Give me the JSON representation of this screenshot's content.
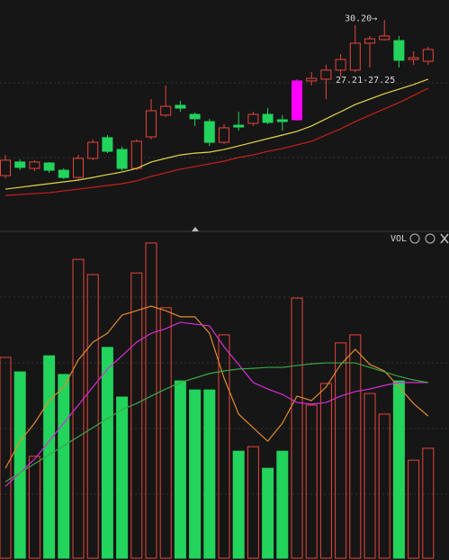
{
  "chart_data": [
    {
      "type": "candlestick",
      "open": [
        22.46,
        23.14,
        22.82,
        23.09,
        22.73,
        22.37,
        23.32,
        24.35,
        23.76,
        22.82,
        24.39,
        25.47,
        25.96,
        25.51,
        25.15,
        24.12,
        24.97,
        25.06,
        25.51,
        25.24,
        25.24,
        27.17,
        27.26,
        27.71,
        27.71,
        29.05,
        29.23,
        29.18,
        28.24,
        28.15
      ],
      "high": [
        23.49,
        23.27,
        23.23,
        23.14,
        22.82,
        23.49,
        24.26,
        24.48,
        23.9,
        24.26,
        26.27,
        26.94,
        26.18,
        25.6,
        25.29,
        25.02,
        25.64,
        25.64,
        25.82,
        25.47,
        27.26,
        27.62,
        27.97,
        28.51,
        29.95,
        29.41,
        30.2,
        29.41,
        28.65,
        28.87
      ],
      "low": [
        22.33,
        22.73,
        22.69,
        22.6,
        22.28,
        22.28,
        23.23,
        23.58,
        22.69,
        22.73,
        24.26,
        25.38,
        25.64,
        24.93,
        23.94,
        24.03,
        24.7,
        24.93,
        25.02,
        24.7,
        25.2,
        26.94,
        26.27,
        27.39,
        27.62,
        27.84,
        29.18,
        27.84,
        27.97,
        27.97
      ],
      "close": [
        23.23,
        22.87,
        23.14,
        22.73,
        22.37,
        23.32,
        24.12,
        23.67,
        22.82,
        24.17,
        25.69,
        25.91,
        25.82,
        25.29,
        24.12,
        24.84,
        24.88,
        25.51,
        25.11,
        25.15,
        27.17,
        27.3,
        27.71,
        28.24,
        29.05,
        29.27,
        29.41,
        28.2,
        28.33,
        28.74
      ],
      "ylim": [
        20,
        31.2
      ],
      "up_color": "#e8453c",
      "down_color": "#22d35c",
      "highlight_index": 20,
      "highlight_color": "#ff00ff",
      "series": [
        {
          "color": "#e2d64a",
          "values": [
            21.79,
            21.88,
            21.97,
            22.06,
            22.15,
            22.24,
            22.37,
            22.51,
            22.64,
            22.82,
            23.14,
            23.32,
            23.49,
            23.58,
            23.63,
            23.76,
            23.94,
            24.12,
            24.3,
            24.48,
            24.66,
            24.93,
            25.29,
            25.64,
            26.0,
            26.27,
            26.54,
            26.76,
            26.99,
            27.26
          ]
        },
        {
          "color": "#c8201c",
          "values": [
            21.48,
            21.52,
            21.57,
            21.61,
            21.7,
            21.79,
            21.88,
            21.97,
            22.06,
            22.2,
            22.42,
            22.6,
            22.78,
            22.91,
            23.05,
            23.18,
            23.36,
            23.49,
            23.67,
            23.81,
            23.99,
            24.17,
            24.48,
            24.79,
            25.15,
            25.47,
            25.78,
            26.09,
            26.45,
            26.81
          ]
        }
      ],
      "annotations": [
        "30.20→",
        "27.21-27.25"
      ]
    },
    {
      "type": "volume",
      "title": "VOL",
      "values": [
        62.3,
        57.8,
        31.6,
        62.8,
        57.0,
        92.7,
        88.0,
        65.4,
        50.0,
        88.5,
        97.8,
        77.7,
        55.0,
        52.2,
        52.2,
        69.3,
        33.2,
        34.6,
        27.9,
        33.2,
        80.7,
        47.5,
        54.2,
        66.8,
        69.3,
        51.1,
        44.7,
        55.0,
        30.4,
        34.1
      ],
      "ylim": [
        0,
        100
      ],
      "series": [
        {
          "color": "#e08a2a",
          "values": [
            27.9,
            36.3,
            41.9,
            48.9,
            53.1,
            61.5,
            67.0,
            69.8,
            75.4,
            76.8,
            78.2,
            76.8,
            74.9,
            74.9,
            69.8,
            55.9,
            44.7,
            40.5,
            36.3,
            41.9,
            50.3,
            48.9,
            53.1,
            60.1,
            64.8,
            60.1,
            58.1,
            53.1,
            48.0,
            44.1
          ]
        },
        {
          "color": "#d62ed6",
          "values": [
            22.3,
            26.5,
            30.7,
            36.3,
            41.9,
            47.5,
            53.1,
            58.7,
            62.8,
            67.0,
            69.8,
            71.2,
            73.2,
            72.6,
            72.1,
            65.6,
            60.1,
            54.5,
            52.5,
            50.8,
            48.3,
            47.8,
            48.3,
            50.3,
            51.7,
            52.5,
            53.6,
            54.5,
            54.5,
            54.5
          ]
        },
        {
          "color": "#3aa844",
          "values": [
            23.7,
            26.5,
            29.3,
            32.1,
            34.9,
            37.7,
            40.5,
            43.3,
            46.1,
            48.0,
            50.3,
            52.5,
            54.5,
            55.9,
            57.3,
            58.1,
            58.7,
            58.9,
            59.2,
            59.2,
            59.8,
            60.3,
            60.6,
            60.6,
            60.6,
            59.2,
            57.8,
            56.4,
            55.3,
            54.5
          ]
        }
      ]
    }
  ]
}
